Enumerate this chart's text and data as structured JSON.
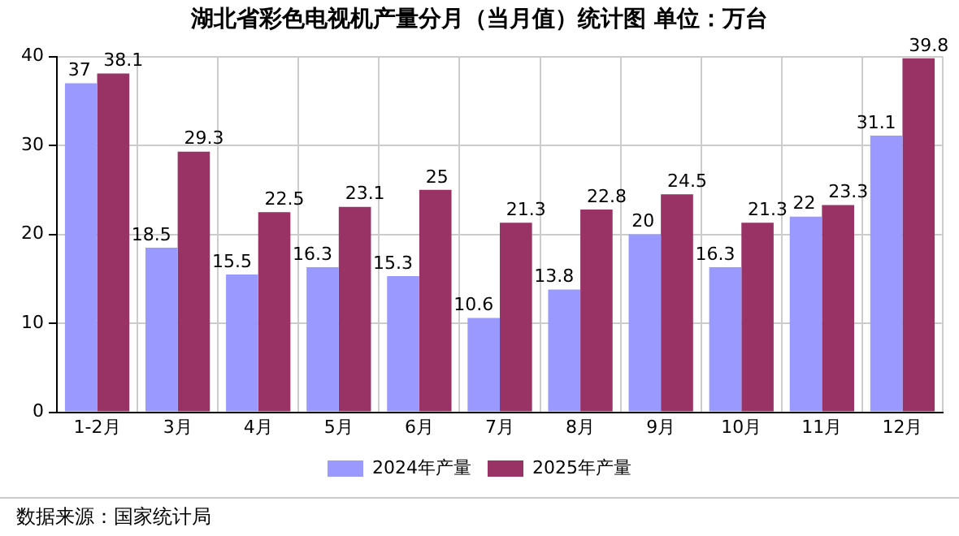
{
  "chart_data": {
    "type": "bar",
    "title": "湖北省彩色电视机产量分月（当月值）统计图 单位：万台",
    "categories": [
      "1-2月",
      "3月",
      "4月",
      "5月",
      "6月",
      "7月",
      "8月",
      "9月",
      "10月",
      "11月",
      "12月"
    ],
    "series": [
      {
        "name": "2024年产量",
        "color": "#9999ff",
        "values": [
          37,
          18.5,
          15.5,
          16.3,
          15.3,
          10.6,
          13.8,
          20,
          16.3,
          22,
          31.1
        ]
      },
      {
        "name": "2025年产量",
        "color": "#993366",
        "values": [
          38.1,
          29.3,
          22.5,
          23.1,
          25,
          21.3,
          22.8,
          24.5,
          21.3,
          23.3,
          39.8
        ]
      }
    ],
    "ylim": [
      0,
      40
    ],
    "yticks": [
      0,
      10,
      20,
      30,
      40
    ],
    "grid": true,
    "legend": "bottom",
    "data_labels": true,
    "annotations": [
      "数据来源：国家统计局"
    ]
  }
}
